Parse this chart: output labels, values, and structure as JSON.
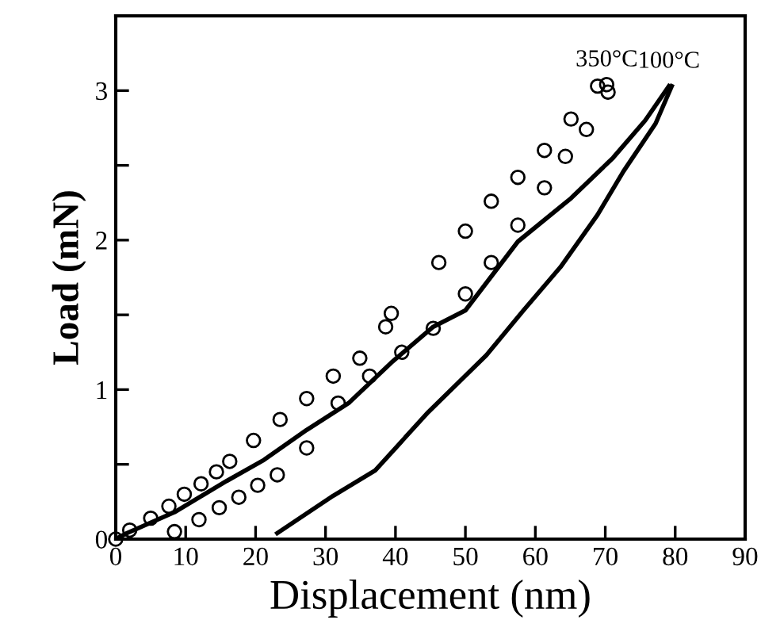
{
  "chart_data": {
    "type": "line",
    "xlabel": "Displacement (nm)",
    "ylabel": "Load (mN)",
    "xlim": [
      0,
      90
    ],
    "ylim": [
      0,
      3.5
    ],
    "xticks": [
      0,
      10,
      20,
      30,
      40,
      50,
      60,
      70,
      80,
      90
    ],
    "yticks": [
      0,
      {
        "value": 0.5,
        "label": null
      },
      1,
      {
        "value": 1.5,
        "label": null
      },
      2,
      {
        "value": 2.5,
        "label": null
      },
      3
    ],
    "grid": false,
    "legend": false,
    "annotations": [
      {
        "text": "350°C",
        "x": 70.2,
        "y": 3.04
      },
      {
        "text": "100°C",
        "x": 79.1,
        "y": 3.03
      }
    ],
    "series": [
      {
        "type": "scatter",
        "marker": "circle",
        "color": "#000000",
        "x": [
          0,
          2.0,
          5.0,
          7.6,
          9.8,
          12.2,
          14.4,
          16.3,
          19.7,
          23.5,
          27.3,
          31.1,
          34.9,
          38.6,
          39.4,
          46.2,
          50.0,
          53.7,
          57.5,
          61.3,
          65.1,
          68.9,
          70.2
        ],
        "values": [
          0,
          0.06,
          0.14,
          0.22,
          0.3,
          0.37,
          0.45,
          0.52,
          0.66,
          0.8,
          0.94,
          1.09,
          1.21,
          1.42,
          1.51,
          1.85,
          2.06,
          2.26,
          2.42,
          2.6,
          2.81,
          3.03,
          3.04
        ]
      },
      {
        "type": "scatter",
        "marker": "circle",
        "color": "#000000",
        "x": [
          70.4,
          67.3,
          64.3,
          61.3,
          57.5,
          53.7,
          50.0,
          45.4,
          40.9,
          36.3,
          31.8,
          27.3,
          23.1,
          20.3,
          17.6,
          14.8,
          11.9,
          8.4
        ],
        "values": [
          2.99,
          2.74,
          2.56,
          2.35,
          2.1,
          1.85,
          1.64,
          1.41,
          1.25,
          1.09,
          0.91,
          0.61,
          0.43,
          0.36,
          0.28,
          0.21,
          0.13,
          0.05
        ]
      },
      {
        "marker": "none",
        "line_style": "solid",
        "color": "#000000",
        "x": [
          0,
          1.6,
          8.4,
          15.9,
          21.2,
          27.3,
          33.3,
          39.4,
          45.4,
          50.0,
          57.5,
          65.1,
          71.1,
          75.7,
          79.1
        ],
        "values": [
          0,
          0.04,
          0.18,
          0.39,
          0.53,
          0.73,
          0.91,
          1.18,
          1.42,
          1.53,
          1.99,
          2.28,
          2.55,
          2.8,
          3.03
        ]
      },
      {
        "marker": "none",
        "line_style": "solid",
        "color": "#000000",
        "x": [
          79.5,
          77.2,
          72.6,
          68.9,
          63.6,
          58.3,
          53.0,
          44.7,
          37.1,
          31.1,
          23.1
        ],
        "values": [
          3.03,
          2.78,
          2.46,
          2.17,
          1.82,
          1.53,
          1.23,
          0.85,
          0.46,
          0.29,
          0.04
        ]
      }
    ]
  }
}
